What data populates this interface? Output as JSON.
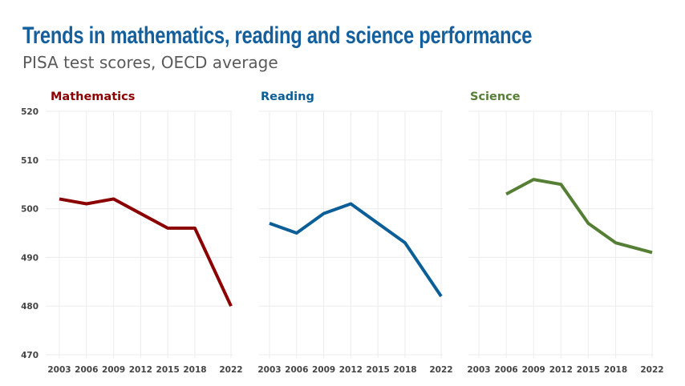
{
  "chart_data": {
    "type": "line",
    "title": "Trends in mathematics, reading and science performance",
    "subtitle": "PISA test scores, OECD average",
    "x": [
      2003,
      2006,
      2009,
      2012,
      2015,
      2018,
      2022
    ],
    "x_tick_labels": [
      "2003",
      "2006",
      "2009",
      "2012",
      "2015",
      "2018",
      "2022"
    ],
    "ylim": [
      470,
      520
    ],
    "y_ticks": [
      470,
      480,
      490,
      500,
      510,
      520
    ],
    "grid": true,
    "panels": [
      {
        "name": "Mathematics",
        "color": "#8b0000",
        "values": [
          502,
          501,
          502,
          499,
          496,
          496,
          480
        ]
      },
      {
        "name": "Reading",
        "color": "#0b5e96",
        "values": [
          497,
          495,
          499,
          501,
          497,
          493,
          482
        ]
      },
      {
        "name": "Science",
        "color": "#557f35",
        "values": [
          null,
          503,
          506,
          505,
          497,
          493,
          491
        ]
      }
    ]
  }
}
